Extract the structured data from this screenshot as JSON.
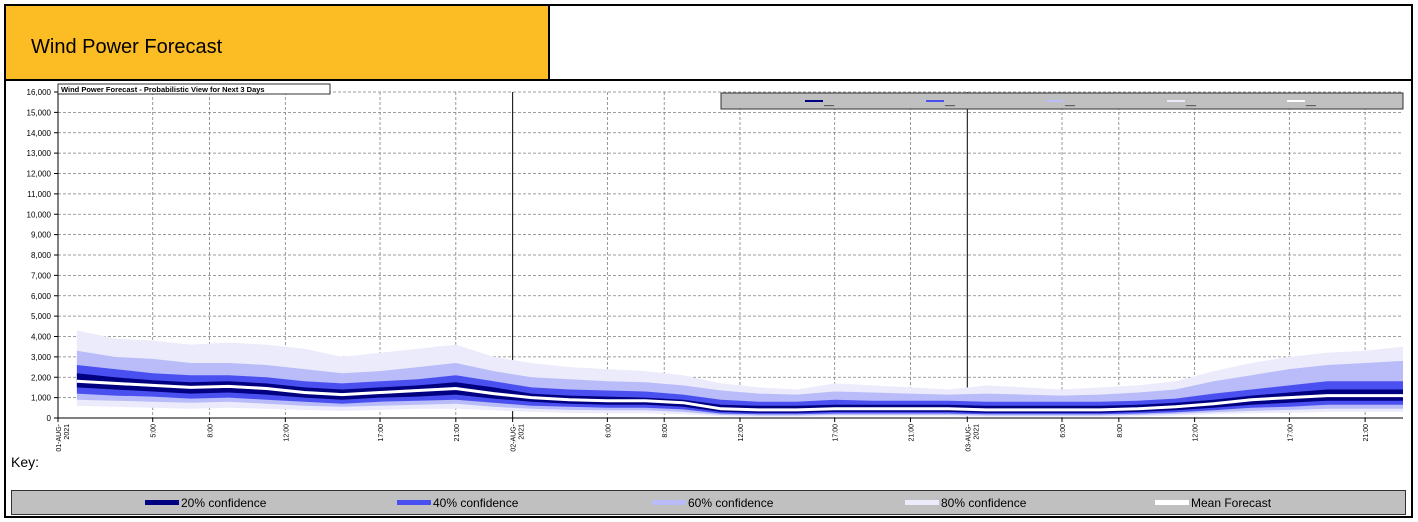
{
  "header": {
    "title": "Wind Power Forecast"
  },
  "key": {
    "label": "Key:",
    "items": [
      {
        "label": "20% confidence",
        "color": "#000080"
      },
      {
        "label": "40% confidence",
        "color": "#4a50f0"
      },
      {
        "label": "60% confidence",
        "color": "#b9bcf8"
      },
      {
        "label": "80% confidence",
        "color": "#ebebfc"
      },
      {
        "label": "Mean Forecast",
        "color": "#ffffff"
      }
    ]
  },
  "chart_data": {
    "type": "area",
    "title": "Wind Power Forecast - Probabilistic View for Next 3 Days",
    "xlabel": "",
    "ylabel": "",
    "ylim": [
      0,
      16000
    ],
    "yticks": [
      0,
      1000,
      2000,
      3000,
      4000,
      5000,
      6000,
      7000,
      8000,
      9000,
      10000,
      11000,
      12000,
      13000,
      14000,
      15000,
      16000
    ],
    "ytick_labels": [
      "0",
      "1,000",
      "2,000",
      "3,000",
      "4,000",
      "5,000",
      "6,000",
      "7,000",
      "8,000",
      "9,000",
      "10,000",
      "11,000",
      "12,000",
      "13,000",
      "14,000",
      "15,000",
      "16,000"
    ],
    "xlim_hours": [
      0,
      71
    ],
    "xticks": [
      {
        "h": 0,
        "label": "01-AUG-2021",
        "major": true
      },
      {
        "h": 5,
        "label": "5:00"
      },
      {
        "h": 8,
        "label": "8:00"
      },
      {
        "h": 12,
        "label": "12:00"
      },
      {
        "h": 17,
        "label": "17:00"
      },
      {
        "h": 21,
        "label": "21:00"
      },
      {
        "h": 24,
        "label": "02-AUG-2021",
        "major": true
      },
      {
        "h": 29,
        "label": "6:00"
      },
      {
        "h": 32,
        "label": "8:00"
      },
      {
        "h": 36,
        "label": "12:00"
      },
      {
        "h": 41,
        "label": "17:00"
      },
      {
        "h": 45,
        "label": "21:00"
      },
      {
        "h": 48,
        "label": "03-AUG-2021",
        "major": true
      },
      {
        "h": 53,
        "label": "6:00"
      },
      {
        "h": 56,
        "label": "8:00"
      },
      {
        "h": 60,
        "label": "12:00"
      },
      {
        "h": 65,
        "label": "17:00"
      },
      {
        "h": 69,
        "label": "21:00"
      }
    ],
    "legend_placement": "top-right",
    "legend_entries": [
      "__",
      "__",
      "__",
      "__",
      "__"
    ],
    "x_hours": [
      1,
      3,
      5,
      7,
      9,
      11,
      13,
      15,
      17,
      19,
      21,
      23,
      25,
      27,
      29,
      31,
      33,
      35,
      37,
      39,
      41,
      43,
      45,
      47,
      49,
      51,
      53,
      55,
      57,
      59,
      61,
      63,
      65,
      67,
      69,
      71
    ],
    "series": [
      {
        "name": "80% upper",
        "values": [
          4300,
          3900,
          3800,
          3600,
          3700,
          3600,
          3400,
          3000,
          3200,
          3400,
          3600,
          3000,
          2700,
          2500,
          2400,
          2300,
          2100,
          1700,
          1500,
          1400,
          1700,
          1600,
          1500,
          1400,
          1600,
          1500,
          1400,
          1500,
          1600,
          1800,
          2300,
          2700,
          3000,
          3200,
          3300,
          3500
        ]
      },
      {
        "name": "60% upper",
        "values": [
          3300,
          3000,
          2900,
          2700,
          2700,
          2600,
          2400,
          2200,
          2300,
          2500,
          2700,
          2300,
          2000,
          1900,
          1800,
          1750,
          1600,
          1350,
          1200,
          1150,
          1300,
          1250,
          1200,
          1150,
          1200,
          1150,
          1100,
          1150,
          1250,
          1400,
          1800,
          2100,
          2400,
          2600,
          2700,
          2800
        ]
      },
      {
        "name": "40% upper",
        "values": [
          2600,
          2400,
          2200,
          2100,
          2100,
          2000,
          1800,
          1700,
          1800,
          1900,
          2100,
          1800,
          1500,
          1400,
          1350,
          1300,
          1150,
          900,
          800,
          800,
          900,
          850,
          850,
          850,
          800,
          800,
          800,
          800,
          850,
          950,
          1200,
          1400,
          1600,
          1800,
          1800,
          1800
        ]
      },
      {
        "name": "20% upper",
        "values": [
          2200,
          2000,
          1850,
          1750,
          1800,
          1700,
          1500,
          1400,
          1500,
          1600,
          1750,
          1500,
          1200,
          1100,
          1050,
          1000,
          900,
          650,
          600,
          600,
          650,
          650,
          650,
          650,
          600,
          600,
          600,
          600,
          650,
          750,
          900,
          1100,
          1250,
          1400,
          1400,
          1400
        ]
      },
      {
        "name": "Mean",
        "values": [
          1800,
          1700,
          1600,
          1500,
          1550,
          1450,
          1250,
          1150,
          1250,
          1350,
          1450,
          1200,
          1000,
          900,
          850,
          850,
          750,
          450,
          400,
          400,
          450,
          450,
          450,
          450,
          400,
          400,
          400,
          400,
          450,
          550,
          700,
          900,
          1000,
          1100,
          1100,
          1100
        ]
      },
      {
        "name": "20% lower",
        "values": [
          1500,
          1400,
          1300,
          1200,
          1250,
          1150,
          1000,
          900,
          1000,
          1050,
          1150,
          950,
          800,
          700,
          650,
          650,
          550,
          300,
          250,
          250,
          300,
          300,
          300,
          300,
          250,
          250,
          250,
          250,
          300,
          380,
          500,
          650,
          750,
          850,
          850,
          850
        ]
      },
      {
        "name": "40% lower",
        "values": [
          1200,
          1100,
          1050,
          950,
          1000,
          900,
          800,
          700,
          800,
          850,
          900,
          750,
          600,
          550,
          500,
          500,
          420,
          220,
          180,
          180,
          220,
          220,
          220,
          220,
          180,
          180,
          180,
          180,
          220,
          280,
          380,
          500,
          550,
          650,
          650,
          650
        ]
      },
      {
        "name": "60% lower",
        "values": [
          900,
          850,
          800,
          750,
          800,
          700,
          600,
          550,
          600,
          650,
          700,
          550,
          450,
          400,
          380,
          380,
          300,
          150,
          120,
          120,
          150,
          150,
          150,
          150,
          120,
          120,
          120,
          120,
          150,
          200,
          280,
          350,
          400,
          450,
          450,
          450
        ]
      },
      {
        "name": "80% lower",
        "values": [
          600,
          550,
          500,
          450,
          500,
          450,
          400,
          350,
          400,
          450,
          450,
          380,
          300,
          250,
          230,
          230,
          180,
          80,
          60,
          60,
          80,
          80,
          80,
          80,
          60,
          60,
          60,
          60,
          80,
          120,
          180,
          230,
          260,
          300,
          300,
          300
        ]
      }
    ]
  }
}
